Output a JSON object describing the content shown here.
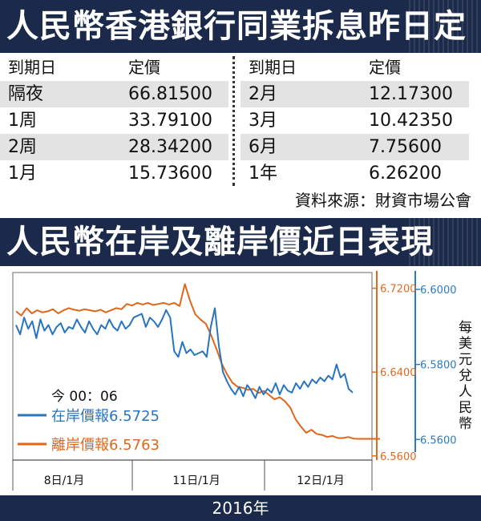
{
  "table": {
    "title": "人民幣香港銀行同業拆息昨日定價",
    "header_term": "到期日",
    "header_rate": "定價",
    "left_rows": [
      {
        "term": "隔夜",
        "rate": "66.81500"
      },
      {
        "term": "1周",
        "rate": "33.79100"
      },
      {
        "term": "2周",
        "rate": "28.34200"
      },
      {
        "term": "1月",
        "rate": "15.73600"
      }
    ],
    "right_rows": [
      {
        "term": "2月",
        "rate": "12.17300"
      },
      {
        "term": "3月",
        "rate": "10.42350"
      },
      {
        "term": "6月",
        "rate": "7.75600"
      },
      {
        "term": "1年",
        "rate": "6.26200"
      }
    ],
    "source": "資料來源：財資市場公會"
  },
  "chart_data": {
    "type": "line",
    "title": "人民幣在岸及離岸價近日表現",
    "x_ticks": [
      "8日/1月",
      "11日/1月",
      "12日/1月"
    ],
    "xlabel": "2016年",
    "ylabel": "每美元兌人民幣",
    "y_left": {
      "ticks": [
        "6.7200",
        "6.6400",
        "6.5600"
      ],
      "range": [
        6.556,
        6.735
      ],
      "color": "#e06a1e"
    },
    "y_right": {
      "ticks": [
        "6.6000",
        "6.5800",
        "6.5600"
      ],
      "range": [
        6.5545,
        6.6045
      ],
      "color": "#2c7bc0"
    },
    "annotation_time": "今 00：06",
    "series": [
      {
        "name": "在岸價報6.5725",
        "axis": "right",
        "color": "#2874bf",
        "values": [
          6.5905,
          6.588,
          6.5925,
          6.5895,
          6.5915,
          6.587,
          6.592,
          6.589,
          6.5905,
          6.588,
          6.59,
          6.591,
          6.5885,
          6.59,
          6.5895,
          6.592,
          6.59,
          6.5885,
          6.5915,
          6.5895,
          6.588,
          6.5905,
          6.5895,
          6.592,
          6.59,
          6.589,
          6.5915,
          6.5895,
          6.5905,
          6.5925,
          6.593,
          6.5935,
          6.59,
          6.5925,
          6.5915,
          6.59,
          6.592,
          6.5945,
          6.5925,
          6.5835,
          6.582,
          6.586,
          6.583,
          6.584,
          6.5825,
          6.583,
          6.5835,
          6.582,
          6.59,
          6.595,
          6.585,
          6.578,
          6.5755,
          6.5735,
          6.572,
          6.574,
          6.5715,
          6.5745,
          6.573,
          6.571,
          6.574,
          6.572,
          6.5735,
          6.5725,
          6.575,
          6.572,
          6.5745,
          6.573,
          6.5725,
          6.575,
          6.5735,
          6.5755,
          6.574,
          6.576,
          6.575,
          6.5765,
          6.5755,
          6.577,
          6.576,
          6.58,
          6.5765,
          6.5775,
          6.5735,
          6.5725
        ]
      },
      {
        "name": "離岸價報6.5763",
        "axis": "left",
        "color": "#e0661a",
        "values": [
          6.698,
          6.694,
          6.701,
          6.696,
          6.699,
          6.697,
          6.698,
          6.7,
          6.696,
          6.699,
          6.701,
          6.6995,
          6.6985,
          6.7,
          6.699,
          6.698,
          6.6995,
          6.697,
          6.699,
          6.701,
          6.7,
          6.705,
          6.7035,
          6.706,
          6.7045,
          6.706,
          6.704,
          6.705,
          6.706,
          6.7045,
          6.706,
          6.703,
          6.724,
          6.708,
          6.695,
          6.69,
          6.686,
          6.675,
          6.662,
          6.648,
          6.638,
          6.63,
          6.626,
          6.625,
          6.623,
          6.624,
          6.62,
          6.622,
          6.618,
          6.614,
          6.616,
          6.612,
          6.606,
          6.595,
          6.588,
          6.582,
          6.585,
          6.581,
          6.58,
          6.578,
          6.579,
          6.577,
          6.577,
          6.578,
          6.5765,
          6.5763,
          6.5763,
          6.5763,
          6.5763,
          6.5763
        ]
      }
    ]
  }
}
